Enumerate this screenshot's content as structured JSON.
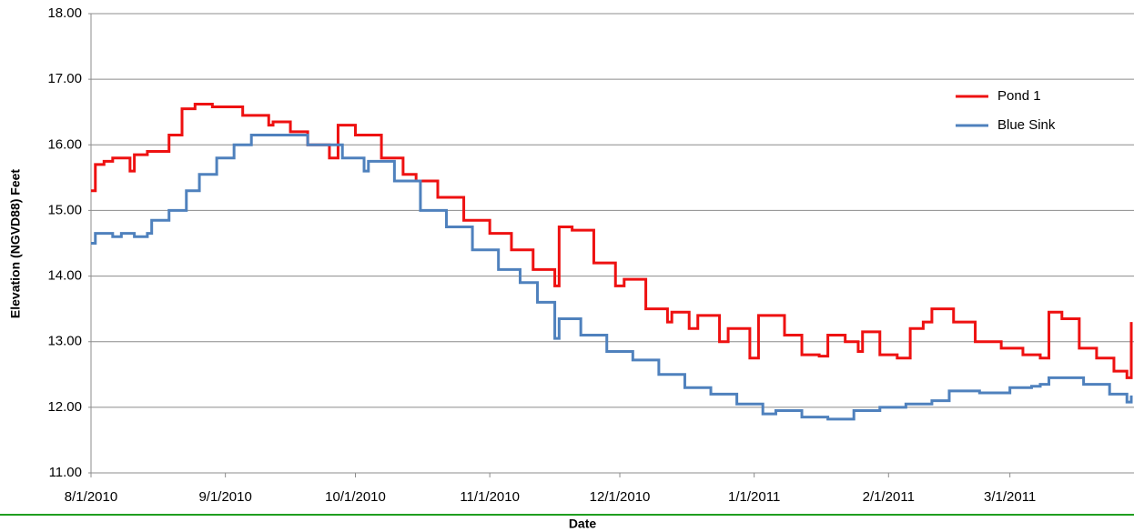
{
  "chart_data": {
    "type": "line",
    "line_style": "step",
    "y_label": "Elevation (NGVD88) Feet",
    "x_label": "Date",
    "xlim": [
      "8/1/2010",
      "3/29/2011"
    ],
    "xticks": [
      "8/1/2010",
      "9/1/2010",
      "10/1/2010",
      "11/1/2010",
      "12/1/2010",
      "1/1/2011",
      "2/1/2011",
      "3/1/2011"
    ],
    "ylim": [
      11,
      18
    ],
    "yticks": [
      {
        "value": 11,
        "label": "11.00"
      },
      {
        "value": 12,
        "label": "12.00"
      },
      {
        "value": 13,
        "label": "13.00"
      },
      {
        "value": 14,
        "label": "14.00"
      },
      {
        "value": 15,
        "label": "15.00"
      },
      {
        "value": 16,
        "label": "16.00"
      },
      {
        "value": 17,
        "label": "17.00"
      },
      {
        "value": 18,
        "label": "18.00"
      }
    ],
    "grid": true,
    "legend": "upper right",
    "series": [
      {
        "name": "Pond 1",
        "color": "#ee1111",
        "x": [
          "8/1/2010",
          "8/2/2010",
          "8/4/2010",
          "8/6/2010",
          "8/10/2010",
          "8/11/2010",
          "8/14/2010",
          "8/16/2010",
          "8/19/2010",
          "8/22/2010",
          "8/25/2010",
          "8/29/2010",
          "9/5/2010",
          "9/11/2010",
          "9/12/2010",
          "9/16/2010",
          "9/20/2010",
          "9/25/2010",
          "9/27/2010",
          "10/1/2010",
          "10/7/2010",
          "10/12/2010",
          "10/15/2010",
          "10/20/2010",
          "10/26/2010",
          "11/1/2010",
          "11/6/2010",
          "11/11/2010",
          "11/16/2010",
          "11/17/2010",
          "11/20/2010",
          "11/25/2010",
          "11/30/2010",
          "12/2/2010",
          "12/7/2010",
          "12/12/2010",
          "12/13/2010",
          "12/17/2010",
          "12/19/2010",
          "12/24/2010",
          "12/26/2010",
          "12/31/2010",
          "1/2/2011",
          "1/5/2011",
          "1/8/2011",
          "1/12/2011",
          "1/16/2011",
          "1/18/2011",
          "1/22/2011",
          "1/25/2011",
          "1/26/2011",
          "1/30/2011",
          "2/3/2011",
          "2/6/2011",
          "2/9/2011",
          "2/11/2011",
          "2/16/2011",
          "2/21/2011",
          "2/27/2011",
          "3/4/2011",
          "3/8/2011",
          "3/10/2011",
          "3/13/2011",
          "3/17/2011",
          "3/21/2011",
          "3/25/2011",
          "3/28/2011",
          "3/29/2011"
        ],
        "values": [
          15.3,
          15.7,
          15.75,
          15.8,
          15.6,
          15.85,
          15.9,
          15.9,
          16.15,
          16.55,
          16.62,
          16.58,
          16.45,
          16.3,
          16.35,
          16.2,
          16.0,
          15.8,
          16.3,
          16.15,
          15.8,
          15.55,
          15.45,
          15.2,
          14.85,
          14.65,
          14.4,
          14.1,
          13.85,
          14.75,
          14.7,
          14.2,
          13.85,
          13.95,
          13.5,
          13.3,
          13.45,
          13.2,
          13.4,
          13.0,
          13.2,
          12.75,
          13.4,
          13.4,
          13.1,
          12.8,
          12.78,
          13.1,
          13.0,
          12.85,
          13.15,
          12.8,
          12.75,
          13.2,
          13.3,
          13.5,
          13.3,
          13.0,
          12.9,
          12.8,
          12.75,
          13.45,
          13.35,
          12.9,
          12.75,
          12.55,
          12.45,
          13.3
        ]
      },
      {
        "name": "Blue Sink",
        "color": "#4f81bd",
        "x": [
          "8/1/2010",
          "8/2/2010",
          "8/6/2010",
          "8/8/2010",
          "8/11/2010",
          "8/14/2010",
          "8/15/2010",
          "8/19/2010",
          "8/23/2010",
          "8/26/2010",
          "8/30/2010",
          "9/3/2010",
          "9/7/2010",
          "9/15/2010",
          "9/20/2010",
          "9/28/2010",
          "10/3/2010",
          "10/4/2010",
          "10/10/2010",
          "10/16/2010",
          "10/22/2010",
          "10/28/2010",
          "11/3/2010",
          "11/8/2010",
          "11/12/2010",
          "11/16/2010",
          "11/17/2010",
          "11/22/2010",
          "11/28/2010",
          "12/4/2010",
          "12/10/2010",
          "12/16/2010",
          "12/22/2010",
          "12/28/2010",
          "1/3/2011",
          "1/6/2011",
          "1/12/2011",
          "1/18/2011",
          "1/24/2011",
          "1/30/2011",
          "2/5/2011",
          "2/11/2011",
          "2/15/2011",
          "2/22/2011",
          "3/1/2011",
          "3/6/2011",
          "3/8/2011",
          "3/10/2011",
          "3/18/2011",
          "3/24/2011",
          "3/28/2011",
          "3/29/2011"
        ],
        "values": [
          14.5,
          14.65,
          14.6,
          14.65,
          14.6,
          14.65,
          14.85,
          15.0,
          15.3,
          15.55,
          15.8,
          16.0,
          16.15,
          16.15,
          16.0,
          15.8,
          15.6,
          15.75,
          15.45,
          15.0,
          14.75,
          14.4,
          14.1,
          13.9,
          13.6,
          13.05,
          13.35,
          13.1,
          12.85,
          12.72,
          12.5,
          12.3,
          12.2,
          12.05,
          11.9,
          11.95,
          11.85,
          11.82,
          11.95,
          12.0,
          12.05,
          12.1,
          12.25,
          12.22,
          12.3,
          12.32,
          12.35,
          12.45,
          12.35,
          12.2,
          12.08,
          12.18
        ]
      }
    ]
  }
}
